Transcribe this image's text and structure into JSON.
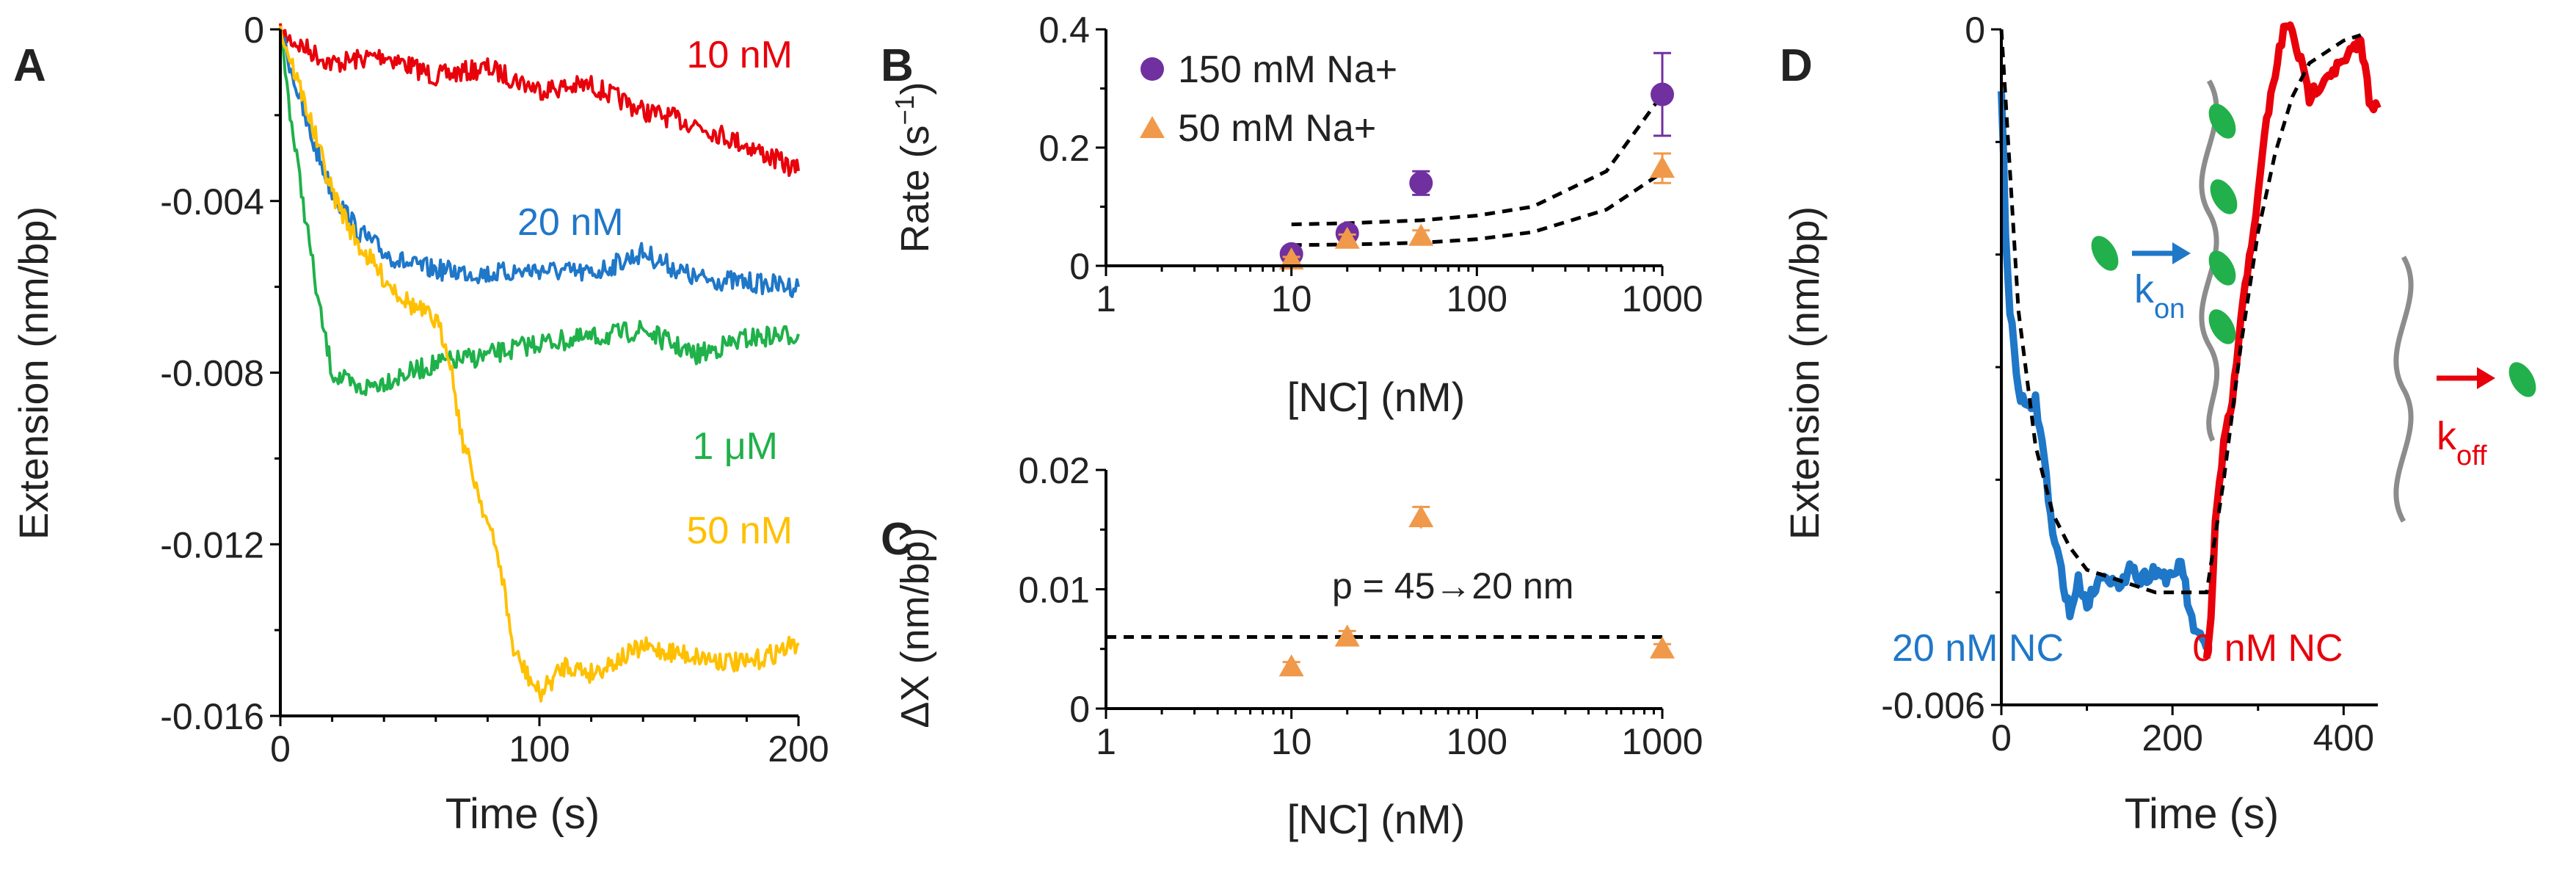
{
  "colors": {
    "red": "#e8000b",
    "blue": "#1f77c8",
    "green": "#1fb14a",
    "yellow": "#ffc000",
    "purple": "#7030a0",
    "orange": "#f0994a",
    "protein": "#21b04b",
    "dna": "#8c8c8c",
    "fit": "#000000"
  },
  "panels": {
    "A": {
      "letter": "A"
    },
    "B": {
      "letter": "B"
    },
    "C": {
      "letter": "C"
    },
    "D": {
      "letter": "D"
    }
  },
  "chart_data": [
    {
      "panel": "A",
      "type": "line",
      "xlabel": "Time (s)",
      "ylabel": "Extension (nm/bp)",
      "xlim": [
        0,
        200
      ],
      "ylim": [
        -0.016,
        0
      ],
      "xticks": [
        "0",
        "100",
        "200"
      ],
      "yticks": [
        "0",
        "-0.004",
        "-0.008",
        "-0.012",
        "-0.016"
      ],
      "series": [
        {
          "name": "10 nM",
          "color": "red",
          "x": [
            0,
            20,
            40,
            60,
            80,
            100,
            120,
            140,
            160,
            180,
            200
          ],
          "y": [
            -0.0001,
            -0.0008,
            -0.0006,
            -0.0011,
            -0.0009,
            -0.0014,
            -0.0013,
            -0.0019,
            -0.0022,
            -0.0027,
            -0.0033
          ]
        },
        {
          "name": "20 nM",
          "color": "blue",
          "x": [
            0,
            10,
            20,
            30,
            40,
            50,
            60,
            80,
            100,
            120,
            140,
            160,
            180,
            200
          ],
          "y": [
            0,
            -0.0022,
            -0.0038,
            -0.0047,
            -0.0052,
            -0.0055,
            -0.0056,
            -0.0057,
            -0.0056,
            -0.0057,
            -0.0052,
            -0.0058,
            -0.0059,
            -0.006
          ]
        },
        {
          "name": "1 μM",
          "color": "green",
          "x": [
            0,
            5,
            10,
            15,
            20,
            30,
            40,
            60,
            80,
            100,
            120,
            140,
            160,
            180,
            200
          ],
          "y": [
            0,
            -0.0025,
            -0.0045,
            -0.0065,
            -0.008,
            -0.0084,
            -0.0082,
            -0.0078,
            -0.0076,
            -0.0073,
            -0.0072,
            -0.007,
            -0.0076,
            -0.0072,
            -0.0071
          ]
        },
        {
          "name": "50 nM",
          "color": "yellow",
          "x": [
            0,
            10,
            20,
            30,
            40,
            50,
            60,
            65,
            70,
            75,
            80,
            85,
            90,
            100,
            110,
            120,
            140,
            160,
            180,
            200
          ],
          "y": [
            0,
            -0.0018,
            -0.0038,
            -0.005,
            -0.0058,
            -0.0064,
            -0.0068,
            -0.0075,
            -0.0095,
            -0.0105,
            -0.0115,
            -0.0125,
            -0.0145,
            -0.0155,
            -0.0148,
            -0.015,
            -0.0144,
            -0.0146,
            -0.0148,
            -0.0143
          ]
        }
      ],
      "annotations": [
        {
          "text": "10 nM",
          "color": "red"
        },
        {
          "text": "20 nM",
          "color": "blue"
        },
        {
          "text": "1 μM",
          "color": "green"
        },
        {
          "text": "50 nM",
          "color": "yellow"
        }
      ]
    },
    {
      "panel": "B",
      "type": "scatter",
      "xscale": "log",
      "xlabel": "[NC] (nM)",
      "ylabel_main": "Rate (s",
      "ylabel_sup": "−1",
      "ylabel_end": ")",
      "xlim": [
        1,
        1000
      ],
      "ylim": [
        0,
        0.4
      ],
      "xticks": [
        "1",
        "10",
        "100",
        "1000"
      ],
      "yticks": [
        "0",
        "0.2",
        "0.4"
      ],
      "series": [
        {
          "name": "150 mM Na+",
          "color": "purple",
          "marker": "circle",
          "x": [
            10,
            20,
            50,
            1000
          ],
          "y": [
            0.02,
            0.055,
            0.14,
            0.29
          ],
          "err": [
            0.008,
            0.01,
            0.02,
            0.07
          ]
        },
        {
          "name": "50 mM Na+",
          "color": "orange",
          "marker": "triangle",
          "x": [
            10,
            20,
            50,
            1000
          ],
          "y": [
            0.01,
            0.045,
            0.05,
            0.165
          ],
          "err": [
            0.005,
            0.008,
            0.01,
            0.025
          ]
        }
      ],
      "fits": [
        {
          "x": [
            10,
            20,
            50,
            100,
            200,
            500,
            1000
          ],
          "y": [
            0.07,
            0.072,
            0.077,
            0.085,
            0.1,
            0.16,
            0.29
          ]
        },
        {
          "x": [
            10,
            20,
            50,
            100,
            200,
            500,
            1000
          ],
          "y": [
            0.035,
            0.036,
            0.039,
            0.045,
            0.057,
            0.095,
            0.158
          ]
        }
      ],
      "legend": [
        {
          "text": "150 mM Na+",
          "color": "purple",
          "marker": "circle"
        },
        {
          "text": "50 mM Na+",
          "color": "orange",
          "marker": "triangle"
        }
      ]
    },
    {
      "panel": "C",
      "type": "scatter",
      "xscale": "log",
      "xlabel": "[NC] (nM)",
      "ylabel": "ΔX (nm/bp)",
      "xlim": [
        1,
        1000
      ],
      "ylim": [
        0,
        0.02
      ],
      "xticks": [
        "1",
        "10",
        "100",
        "1000"
      ],
      "yticks": [
        "0",
        "0.01",
        "0.02"
      ],
      "series": [
        {
          "name": "50 mM Na+",
          "color": "orange",
          "marker": "triangle",
          "x": [
            10,
            20,
            50,
            1000
          ],
          "y": [
            0.0035,
            0.006,
            0.016,
            0.005
          ],
          "err": [
            0.0004,
            0.0005,
            0.0009,
            0.0004
          ]
        }
      ],
      "hline": 0.006,
      "annotation": "p = 45→20 nm"
    },
    {
      "panel": "D",
      "type": "line",
      "xlabel": "Time (s)",
      "ylabel": "Extension (nm/bp)",
      "xlim": [
        0,
        440
      ],
      "ylim": [
        -0.006,
        0
      ],
      "xticks": [
        "0",
        "200",
        "400"
      ],
      "yticks": [
        "0",
        "-0.006"
      ],
      "series": [
        {
          "name": "20 nM NC",
          "color": "blue",
          "x": [
            0,
            5,
            10,
            20,
            30,
            40,
            50,
            60,
            70,
            80,
            90,
            100,
            120,
            140,
            150,
            160,
            180,
            200,
            210,
            220,
            230,
            240
          ],
          "y": [
            -0.0005,
            -0.0018,
            -0.0025,
            -0.0032,
            -0.0034,
            -0.0033,
            -0.0038,
            -0.0045,
            -0.0048,
            -0.0052,
            -0.0049,
            -0.0051,
            -0.0048,
            -0.005,
            -0.0047,
            -0.0049,
            -0.0048,
            -0.0049,
            -0.0047,
            -0.0052,
            -0.0054,
            -0.0055
          ]
        },
        {
          "name": "0 nM NC",
          "color": "red",
          "x": [
            240,
            245,
            250,
            260,
            270,
            280,
            290,
            300,
            310,
            320,
            330,
            340,
            350,
            360,
            380,
            400,
            420,
            430,
            440
          ],
          "y": [
            -0.0056,
            -0.0052,
            -0.0044,
            -0.0037,
            -0.0033,
            -0.0026,
            -0.002,
            -0.0015,
            -0.0008,
            -0.0004,
            0.0,
            0.0,
            -0.0003,
            -0.0006,
            -0.0004,
            -0.0003,
            -0.0001,
            -0.0006,
            -0.0007
          ]
        }
      ],
      "fit": {
        "x": [
          0,
          20,
          40,
          60,
          80,
          100,
          140,
          180,
          240,
          260,
          280,
          300,
          320,
          340,
          360,
          380,
          400,
          420
        ],
        "y": [
          0,
          -0.0025,
          -0.0037,
          -0.0043,
          -0.0046,
          -0.0048,
          -0.0049,
          -0.005,
          -0.005,
          -0.004,
          -0.0028,
          -0.0018,
          -0.0011,
          -0.0006,
          -0.0003,
          -0.0002,
          -0.0001,
          -5e-05
        ]
      },
      "annotations": [
        {
          "text": "20 nM NC",
          "color": "blue"
        },
        {
          "text": "0 nM NC",
          "color": "red"
        }
      ],
      "kinetics": [
        {
          "base": "k",
          "sub": "on",
          "color": "blue"
        },
        {
          "base": "k",
          "sub": "off",
          "color": "red"
        }
      ]
    }
  ]
}
